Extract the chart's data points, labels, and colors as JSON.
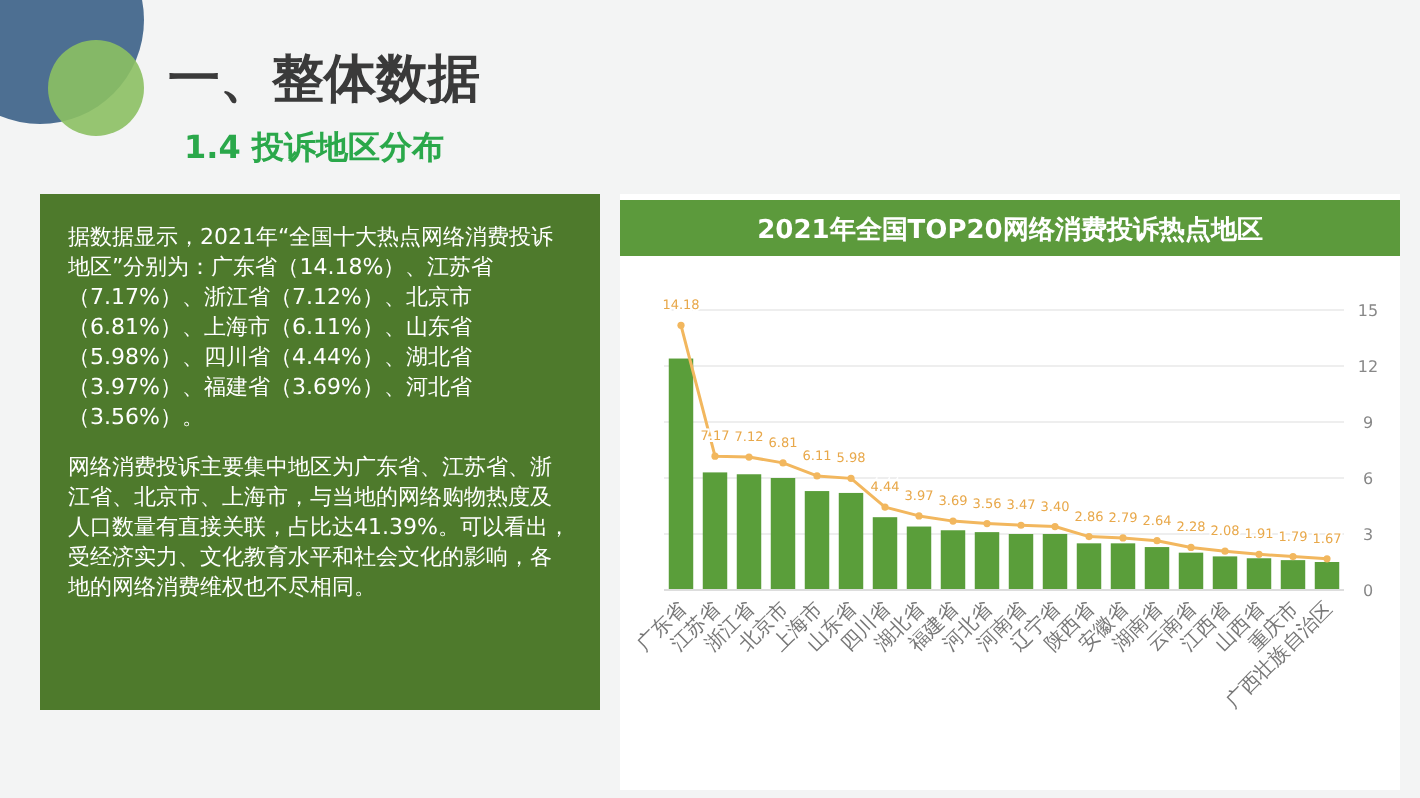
{
  "chart_data": [
    {
      "type": "other",
      "title": "一、整体数据",
      "subtitle": "1.4 投诉地区分布",
      "annotations": [
        "据数据显示，2021年“全国十大热点网络消费投诉地区”分别为：广东省（14.18%）、江苏省（7.17%）、浙江省（7.12%）、北京市（6.81%）、上海市（6.11%）、山东省（5.98%）、四川省（4.44%）、湖北省（3.97%）、福建省（3.69%）、河北省（3.56%）。",
        "网络消费投诉主要集中地区为广东省、江苏省、浙江省、北京市、上海市，与当地的网络购物热度及人口数量有直接关联，占比达41.39%。可以看出，受经济实力、文化教育水平和社会文化的影响，各地的网络消费维权也不尽相同。"
      ]
    },
    {
      "type": "bar",
      "title": "2021年全国TOP20网络消费投诉热点地区",
      "categories": [
        "广东省",
        "江苏省",
        "浙江省",
        "北京市",
        "上海市",
        "山东省",
        "四川省",
        "湖北省",
        "福建省",
        "河北省",
        "河南省",
        "辽宁省",
        "陕西省",
        "安徽省",
        "湖南省",
        "云南省",
        "江西省",
        "山西省",
        "重庆市",
        "广西壮族自治区"
      ],
      "series": [
        {
          "type": "bar",
          "color": "#5a9e3a",
          "values": [
            12.4,
            6.3,
            6.2,
            6.0,
            5.3,
            5.2,
            3.9,
            3.4,
            3.2,
            3.1,
            3.0,
            3.0,
            2.5,
            2.5,
            2.3,
            2.0,
            1.8,
            1.7,
            1.6,
            1.5
          ]
        },
        {
          "type": "line",
          "color": "#f2b75e",
          "marker": "circle",
          "line_style": "solid",
          "values": [
            14.18,
            7.17,
            7.12,
            6.81,
            6.11,
            5.98,
            4.44,
            3.97,
            3.69,
            3.56,
            3.47,
            3.4,
            2.86,
            2.79,
            2.64,
            2.28,
            2.08,
            1.91,
            1.79,
            1.67
          ],
          "value_labels": [
            "14.18",
            "7.17",
            "7.12",
            "6.81",
            "6.11",
            "5.98",
            "4.44",
            "3.97",
            "3.69",
            "3.56",
            "3.47",
            "3.40",
            "2.86",
            "2.79",
            "2.64",
            "2.28",
            "2.08",
            "1.91",
            "1.79",
            "1.67"
          ]
        }
      ],
      "ylim": [
        0,
        15
      ],
      "yticks": [
        0,
        3,
        6,
        9,
        12,
        15
      ],
      "grid": "y"
    }
  ]
}
